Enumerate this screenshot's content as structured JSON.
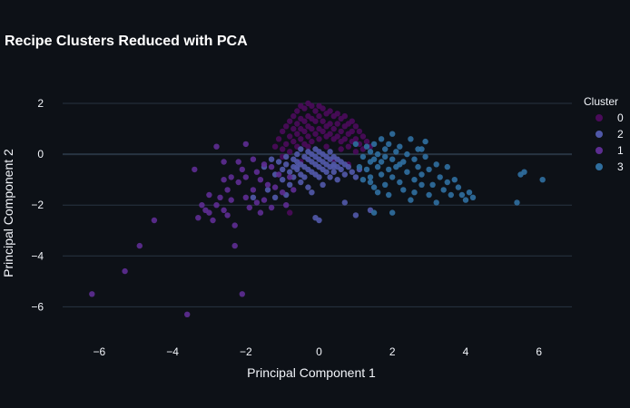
{
  "chart_data": {
    "type": "scatter",
    "title": "Recipe Clusters Reduced with PCA",
    "xlabel": "Principal Component 1",
    "ylabel": "Principal Component 2",
    "xlim": [
      -7,
      6.9
    ],
    "ylim": [
      -7.2,
      3.0
    ],
    "x_ticks": [
      -6,
      -4,
      -2,
      0,
      2,
      4,
      6
    ],
    "y_ticks": [
      -6,
      -4,
      -2,
      0,
      2
    ],
    "x_tick_labels": [
      "−6",
      "−4",
      "−2",
      "0",
      "2",
      "4",
      "6"
    ],
    "y_tick_labels": [
      "−6",
      "−4",
      "−2",
      "0",
      "2"
    ],
    "grid": true,
    "legend": {
      "title": "Cluster",
      "placement": "top-right"
    },
    "series": [
      {
        "name": "0",
        "color": "#4a0b5a",
        "points": [
          [
            -1.2,
            0.3
          ],
          [
            -1.1,
            0.6
          ],
          [
            -1.0,
            0.9
          ],
          [
            -1.0,
            0.2
          ],
          [
            -0.9,
            1.1
          ],
          [
            -0.9,
            0.4
          ],
          [
            -0.8,
            1.3
          ],
          [
            -0.8,
            0.7
          ],
          [
            -0.8,
            0.1
          ],
          [
            -0.7,
            1.5
          ],
          [
            -0.7,
            1.0
          ],
          [
            -0.7,
            0.5
          ],
          [
            -0.6,
            1.7
          ],
          [
            -0.6,
            1.2
          ],
          [
            -0.6,
            0.8
          ],
          [
            -0.6,
            0.3
          ],
          [
            -0.5,
            1.9
          ],
          [
            -0.5,
            1.4
          ],
          [
            -0.5,
            1.0
          ],
          [
            -0.5,
            0.6
          ],
          [
            -0.4,
            1.8
          ],
          [
            -0.4,
            1.3
          ],
          [
            -0.4,
            0.9
          ],
          [
            -0.4,
            0.4
          ],
          [
            -0.3,
            2.0
          ],
          [
            -0.3,
            1.5
          ],
          [
            -0.3,
            1.1
          ],
          [
            -0.3,
            0.7
          ],
          [
            -0.2,
            1.9
          ],
          [
            -0.2,
            1.4
          ],
          [
            -0.2,
            1.0
          ],
          [
            -0.2,
            0.5
          ],
          [
            -0.1,
            1.7
          ],
          [
            -0.1,
            1.3
          ],
          [
            -0.1,
            0.8
          ],
          [
            0.0,
            1.9
          ],
          [
            0.0,
            1.5
          ],
          [
            0.0,
            1.0
          ],
          [
            0.0,
            0.6
          ],
          [
            0.1,
            1.8
          ],
          [
            0.1,
            1.3
          ],
          [
            0.1,
            0.9
          ],
          [
            0.2,
            1.6
          ],
          [
            0.2,
            1.1
          ],
          [
            0.2,
            0.7
          ],
          [
            0.3,
            1.7
          ],
          [
            0.3,
            1.2
          ],
          [
            0.3,
            0.8
          ],
          [
            0.4,
            1.5
          ],
          [
            0.4,
            1.0
          ],
          [
            0.4,
            0.6
          ],
          [
            0.5,
            1.6
          ],
          [
            0.5,
            1.2
          ],
          [
            0.5,
            0.7
          ],
          [
            0.6,
            1.4
          ],
          [
            0.6,
            0.9
          ],
          [
            0.6,
            0.5
          ],
          [
            0.7,
            1.5
          ],
          [
            0.7,
            1.1
          ],
          [
            0.7,
            0.6
          ],
          [
            0.8,
            1.2
          ],
          [
            0.8,
            0.8
          ],
          [
            0.8,
            0.3
          ],
          [
            0.9,
            1.3
          ],
          [
            0.9,
            0.9
          ],
          [
            0.9,
            0.5
          ],
          [
            1.0,
            1.1
          ],
          [
            1.0,
            0.6
          ],
          [
            1.1,
            0.9
          ],
          [
            1.1,
            0.4
          ],
          [
            1.2,
            0.7
          ],
          [
            1.2,
            0.2
          ],
          [
            1.3,
            0.5
          ],
          [
            1.4,
            0.3
          ],
          [
            -1.0,
            -0.1
          ],
          [
            -0.3,
            0.3
          ],
          [
            0.2,
            0.3
          ],
          [
            0.6,
            0.2
          ],
          [
            1.0,
            0.1
          ],
          [
            0.4,
            -0.2
          ],
          [
            -0.8,
            -2.3
          ],
          [
            -0.5,
            -0.3
          ],
          [
            0.8,
            -0.4
          ]
        ]
      },
      {
        "name": "2",
        "color": "#5058a8",
        "points": [
          [
            -1.5,
            -0.5
          ],
          [
            -1.3,
            -0.2
          ],
          [
            -1.2,
            -0.8
          ],
          [
            -1.1,
            -0.3
          ],
          [
            -1.0,
            -0.6
          ],
          [
            -1.0,
            -1.0
          ],
          [
            -0.9,
            -0.1
          ],
          [
            -0.9,
            -0.4
          ],
          [
            -0.8,
            -0.7
          ],
          [
            -0.8,
            -1.2
          ],
          [
            -0.7,
            -0.2
          ],
          [
            -0.7,
            -0.5
          ],
          [
            -0.7,
            -0.9
          ],
          [
            -0.6,
            0.0
          ],
          [
            -0.6,
            -0.3
          ],
          [
            -0.6,
            -0.6
          ],
          [
            -0.5,
            0.2
          ],
          [
            -0.5,
            -0.4
          ],
          [
            -0.5,
            -0.8
          ],
          [
            -0.5,
            -1.1
          ],
          [
            -0.4,
            -0.1
          ],
          [
            -0.4,
            -0.5
          ],
          [
            -0.4,
            -0.9
          ],
          [
            -0.3,
            0.1
          ],
          [
            -0.3,
            -0.2
          ],
          [
            -0.3,
            -0.6
          ],
          [
            -0.3,
            -1.3
          ],
          [
            -0.2,
            0.0
          ],
          [
            -0.2,
            -0.3
          ],
          [
            -0.2,
            -0.7
          ],
          [
            -0.1,
            0.2
          ],
          [
            -0.1,
            -0.1
          ],
          [
            -0.1,
            -0.4
          ],
          [
            -0.1,
            -0.8
          ],
          [
            0.0,
            0.1
          ],
          [
            0.0,
            -0.2
          ],
          [
            0.0,
            -0.5
          ],
          [
            0.0,
            -0.9
          ],
          [
            0.1,
            0.0
          ],
          [
            0.1,
            -0.3
          ],
          [
            0.1,
            -0.6
          ],
          [
            0.1,
            -1.2
          ],
          [
            0.2,
            -0.1
          ],
          [
            0.2,
            -0.4
          ],
          [
            0.2,
            -0.7
          ],
          [
            0.3,
            0.1
          ],
          [
            0.3,
            -0.2
          ],
          [
            0.3,
            -0.5
          ],
          [
            0.3,
            -0.9
          ],
          [
            0.4,
            -0.1
          ],
          [
            0.4,
            -0.4
          ],
          [
            0.4,
            -0.7
          ],
          [
            0.5,
            -0.2
          ],
          [
            0.5,
            -0.5
          ],
          [
            0.5,
            -1.0
          ],
          [
            0.6,
            -0.3
          ],
          [
            0.6,
            -0.6
          ],
          [
            0.7,
            -0.4
          ],
          [
            0.7,
            -0.8
          ],
          [
            0.8,
            -0.5
          ],
          [
            0.9,
            -0.7
          ],
          [
            1.0,
            -0.9
          ],
          [
            1.1,
            -0.6
          ],
          [
            -1.4,
            -1.4
          ],
          [
            -1.8,
            -1.7
          ],
          [
            -0.9,
            -1.6
          ],
          [
            0.0,
            -2.6
          ],
          [
            -0.1,
            -2.5
          ],
          [
            0.7,
            -1.9
          ],
          [
            1.0,
            -2.4
          ],
          [
            1.4,
            -2.2
          ],
          [
            -0.6,
            -0.5
          ],
          [
            0.4,
            -0.5
          ],
          [
            -0.2,
            -1.5
          ],
          [
            -1.2,
            -1.7
          ]
        ]
      },
      {
        "name": "1",
        "color": "#5c2d91",
        "points": [
          [
            -6.2,
            -5.5
          ],
          [
            -5.3,
            -4.6
          ],
          [
            -4.9,
            -3.6
          ],
          [
            -4.5,
            -2.6
          ],
          [
            -3.6,
            -6.3
          ],
          [
            -3.4,
            -0.6
          ],
          [
            -3.2,
            -2.0
          ],
          [
            -3.1,
            -2.2
          ],
          [
            -3.0,
            -1.6
          ],
          [
            -3.0,
            -2.3
          ],
          [
            -2.9,
            -2.6
          ],
          [
            -2.8,
            -2.0
          ],
          [
            -2.7,
            -1.7
          ],
          [
            -2.6,
            -2.2
          ],
          [
            -2.6,
            -1.0
          ],
          [
            -2.5,
            -2.4
          ],
          [
            -2.5,
            -1.4
          ],
          [
            -2.4,
            -0.9
          ],
          [
            -2.3,
            -2.8
          ],
          [
            -2.3,
            -3.6
          ],
          [
            -2.2,
            -0.3
          ],
          [
            -2.2,
            -1.1
          ],
          [
            -2.1,
            -5.5
          ],
          [
            -2.1,
            -0.6
          ],
          [
            -2.0,
            0.4
          ],
          [
            -2.0,
            -0.9
          ],
          [
            -2.0,
            -1.7
          ],
          [
            -1.9,
            -2.1
          ],
          [
            -1.8,
            -1.4
          ],
          [
            -1.8,
            -0.2
          ],
          [
            -1.7,
            -0.7
          ],
          [
            -1.7,
            -1.9
          ],
          [
            -1.6,
            -2.3
          ],
          [
            -1.6,
            -1.0
          ],
          [
            -1.5,
            -0.4
          ],
          [
            -1.5,
            -1.8
          ],
          [
            -1.4,
            -1.2
          ],
          [
            -1.3,
            -0.5
          ],
          [
            -1.3,
            -2.1
          ],
          [
            -1.2,
            -1.3
          ],
          [
            -1.1,
            -0.8
          ],
          [
            -1.0,
            -1.5
          ],
          [
            -0.9,
            -2.0
          ],
          [
            -0.8,
            -0.9
          ],
          [
            -0.7,
            -1.4
          ],
          [
            -2.6,
            -0.3
          ],
          [
            -2.8,
            0.3
          ],
          [
            -2.4,
            -1.8
          ],
          [
            -3.3,
            -2.5
          ]
        ]
      },
      {
        "name": "3",
        "color": "#2f6e9e",
        "points": [
          [
            1.1,
            -0.5
          ],
          [
            1.2,
            -0.1
          ],
          [
            1.2,
            -1.0
          ],
          [
            1.3,
            0.3
          ],
          [
            1.3,
            -0.6
          ],
          [
            1.4,
            0.1
          ],
          [
            1.4,
            -0.3
          ],
          [
            1.4,
            -0.9
          ],
          [
            1.5,
            0.4
          ],
          [
            1.5,
            -0.2
          ],
          [
            1.5,
            -1.3
          ],
          [
            1.6,
            0.0
          ],
          [
            1.6,
            -0.5
          ],
          [
            1.6,
            -1.5
          ],
          [
            1.7,
            0.6
          ],
          [
            1.7,
            -0.3
          ],
          [
            1.7,
            -0.8
          ],
          [
            1.8,
            0.2
          ],
          [
            1.8,
            -0.1
          ],
          [
            1.8,
            -1.2
          ],
          [
            1.9,
            -0.6
          ],
          [
            1.9,
            0.4
          ],
          [
            2.0,
            -0.2
          ],
          [
            2.0,
            -0.9
          ],
          [
            2.0,
            0.8
          ],
          [
            2.1,
            0.1
          ],
          [
            2.1,
            -0.5
          ],
          [
            2.2,
            -1.1
          ],
          [
            2.2,
            0.3
          ],
          [
            2.3,
            -0.3
          ],
          [
            2.3,
            -1.4
          ],
          [
            2.4,
            0.0
          ],
          [
            2.4,
            -0.7
          ],
          [
            2.5,
            0.6
          ],
          [
            2.5,
            -1.8
          ],
          [
            2.6,
            -0.2
          ],
          [
            2.6,
            -1.0
          ],
          [
            2.7,
            -0.5
          ],
          [
            2.7,
            0.2
          ],
          [
            2.8,
            -1.2
          ],
          [
            2.8,
            -0.8
          ],
          [
            2.9,
            0.5
          ],
          [
            2.9,
            -0.1
          ],
          [
            3.0,
            -1.6
          ],
          [
            3.0,
            -0.6
          ],
          [
            3.1,
            -1.2
          ],
          [
            3.2,
            -0.4
          ],
          [
            3.2,
            -1.9
          ],
          [
            3.3,
            -0.9
          ],
          [
            3.4,
            -1.4
          ],
          [
            3.5,
            -0.5
          ],
          [
            3.6,
            -1.6
          ],
          [
            3.7,
            -1.0
          ],
          [
            3.8,
            -1.3
          ],
          [
            3.9,
            -1.6
          ],
          [
            4.0,
            -1.8
          ],
          [
            4.1,
            -1.5
          ],
          [
            4.2,
            -1.7
          ],
          [
            3.5,
            -1.1
          ],
          [
            2.0,
            -2.3
          ],
          [
            1.5,
            -2.3
          ],
          [
            2.6,
            -1.5
          ],
          [
            1.9,
            -1.6
          ],
          [
            1.4,
            -1.1
          ],
          [
            2.2,
            -0.4
          ],
          [
            1.0,
            0.4
          ],
          [
            2.8,
            0.2
          ],
          [
            5.4,
            -1.9
          ],
          [
            5.5,
            -0.8
          ],
          [
            5.6,
            -0.7
          ],
          [
            6.1,
            -1.0
          ]
        ]
      }
    ]
  }
}
